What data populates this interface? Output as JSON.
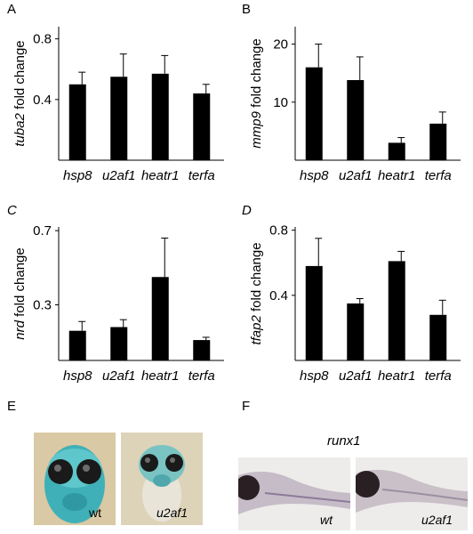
{
  "panels": {
    "A": "A",
    "B": "B",
    "C": "C",
    "D": "D",
    "E": "E",
    "F": "F"
  },
  "chart_data": [
    {
      "panel": "A",
      "type": "bar",
      "categories": [
        "hsp8",
        "u2af1",
        "heatr1",
        "terfa"
      ],
      "values": [
        0.5,
        0.55,
        0.57,
        0.44
      ],
      "errors": [
        0.08,
        0.15,
        0.12,
        0.06
      ],
      "ylabel_gene": "tuba2",
      "ylabel_suffix": " fold change",
      "yticks": [
        "0.4",
        "0.8"
      ],
      "ytick_values": [
        0.4,
        0.8
      ],
      "ylim": [
        0,
        0.88
      ],
      "bar_color": "#000000"
    },
    {
      "panel": "B",
      "type": "bar",
      "categories": [
        "hsp8",
        "u2af1",
        "heatr1",
        "terfa"
      ],
      "values": [
        16,
        13.8,
        3,
        6.3
      ],
      "errors": [
        4,
        4,
        0.9,
        2
      ],
      "ylabel_gene": "mmp9",
      "ylabel_suffix": " fold change",
      "yticks": [
        "10",
        "20"
      ],
      "ytick_values": [
        10,
        20
      ],
      "ylim": [
        0,
        23
      ],
      "bar_color": "#000000"
    },
    {
      "panel": "C",
      "type": "bar",
      "categories": [
        "hsp8",
        "u2af1",
        "heatr1",
        "terfa"
      ],
      "values": [
        0.16,
        0.18,
        0.45,
        0.11
      ],
      "errors": [
        0.05,
        0.04,
        0.21,
        0.015
      ],
      "ylabel_gene": "nrd",
      "ylabel_suffix": " fold change",
      "yticks": [
        "0.3",
        "0.7"
      ],
      "ytick_values": [
        0.3,
        0.7
      ],
      "ylim": [
        0,
        0.72
      ],
      "bar_color": "#000000"
    },
    {
      "panel": "D",
      "type": "bar",
      "categories": [
        "hsp8",
        "u2af1",
        "heatr1",
        "terfa"
      ],
      "values": [
        0.58,
        0.35,
        0.61,
        0.28
      ],
      "errors": [
        0.17,
        0.03,
        0.06,
        0.09
      ],
      "ylabel_gene": "tfap2",
      "ylabel_suffix": " fold change",
      "yticks": [
        "0.4",
        "0.8"
      ],
      "ytick_values": [
        0.4,
        0.8
      ],
      "ylim": [
        0,
        0.82
      ],
      "bar_color": "#000000"
    }
  ],
  "panel_E": {
    "labels": [
      "wt",
      "u2af1"
    ]
  },
  "panel_F": {
    "title": "runx1",
    "labels": [
      "wt",
      "u2af1"
    ]
  }
}
